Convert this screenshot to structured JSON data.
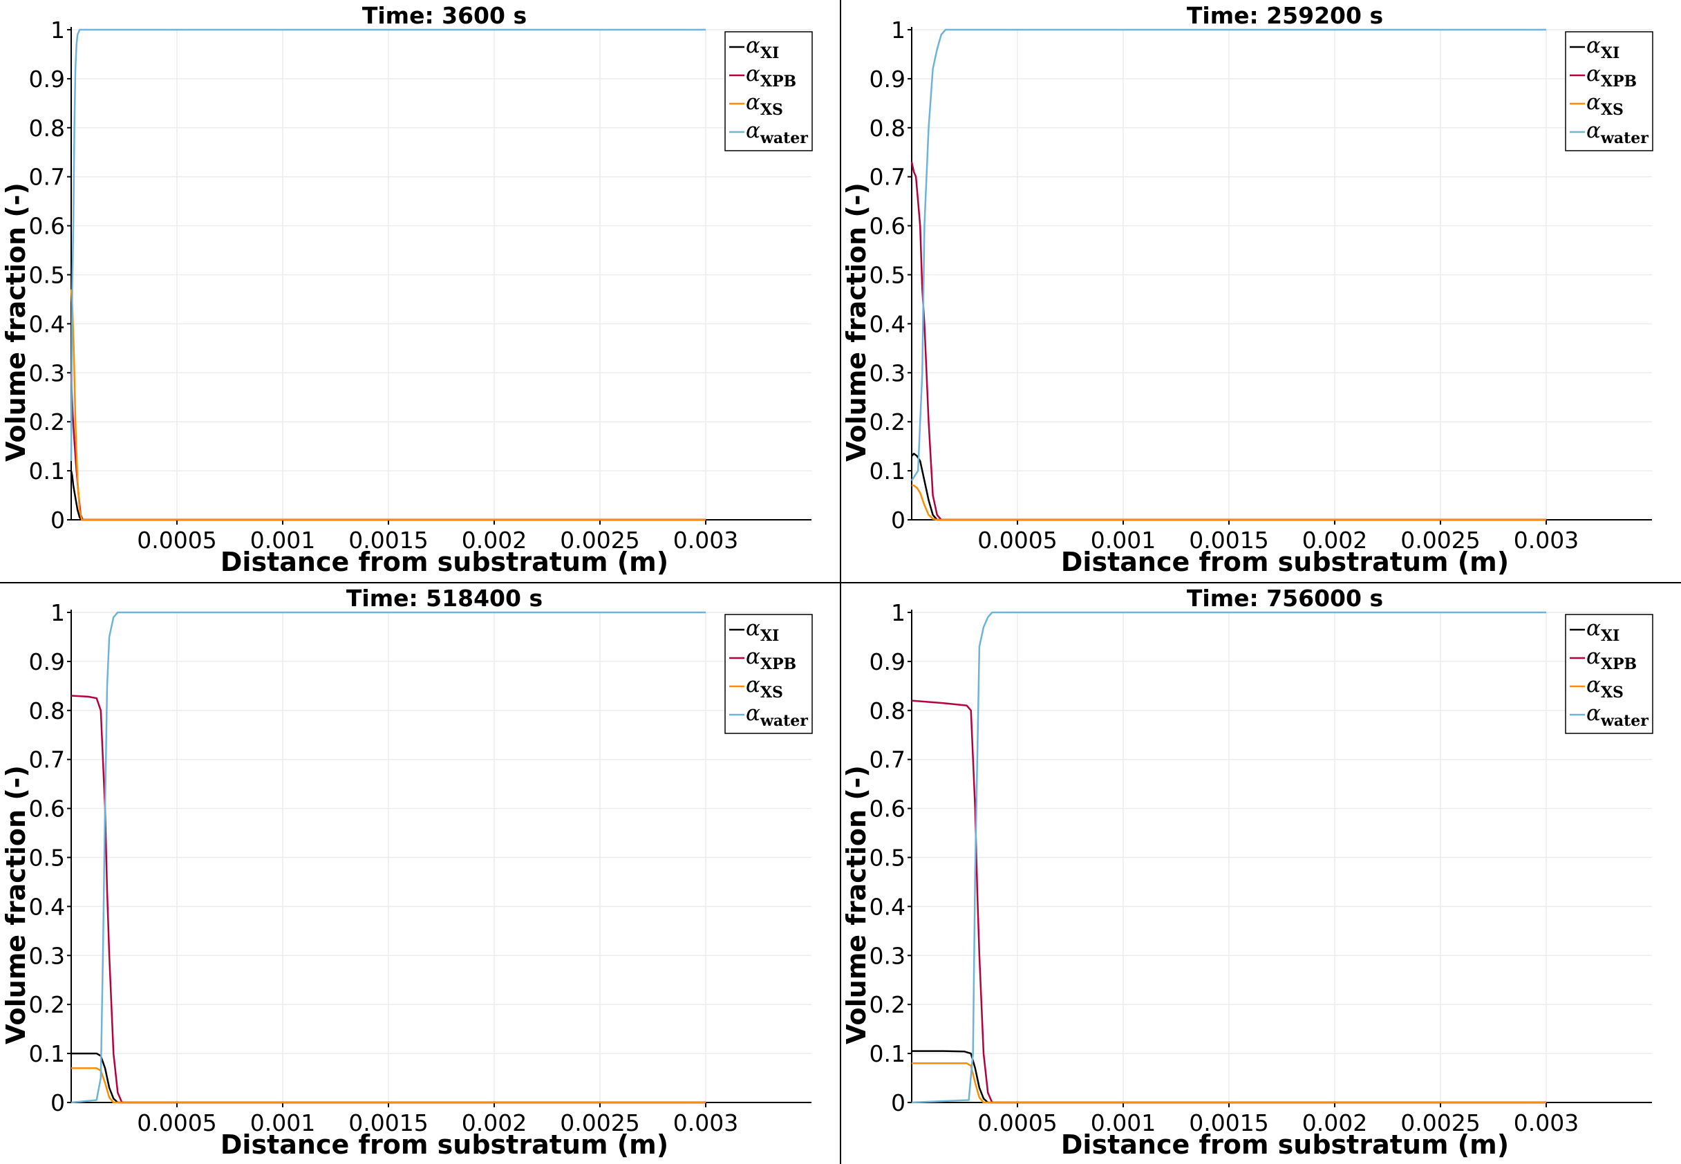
{
  "chart_data": [
    {
      "type": "line",
      "title": "Time: 3600 s",
      "xlabel": "Distance from substratum (m)",
      "ylabel": "Volume fraction (-)",
      "xlim": [
        0,
        0.0035
      ],
      "ylim": [
        0,
        1
      ],
      "xticks": [
        "0.0005",
        "0.001",
        "0.0015",
        "0.002",
        "0.0025",
        "0.003"
      ],
      "yticks": [
        "0",
        "0.1",
        "0.2",
        "0.3",
        "0.4",
        "0.5",
        "0.6",
        "0.7",
        "0.8",
        "0.9",
        "1"
      ],
      "grid": true,
      "legend_position": "top-right",
      "series": [
        {
          "name": "α_XI",
          "color": "#000000",
          "x": [
            0,
            5e-06,
            1e-05,
            2e-05,
            3e-05,
            4e-05,
            5e-05,
            0.003
          ],
          "y": [
            0.1,
            0.09,
            0.07,
            0.045,
            0.02,
            0.005,
            0,
            0
          ]
        },
        {
          "name": "α_XPB",
          "color": "#b5003c",
          "x": [
            0,
            4e-06,
            8e-06,
            1.5e-05,
            2.5e-05,
            3.5e-05,
            4.5e-05,
            5.5e-05,
            0.003
          ],
          "y": [
            0.3,
            0.25,
            0.21,
            0.16,
            0.1,
            0.05,
            0.01,
            0,
            0
          ]
        },
        {
          "name": "α_XS",
          "color": "#ff8c00",
          "x": [
            0,
            6e-06,
            1.2e-05,
            2e-05,
            3e-05,
            4e-05,
            5e-05,
            0.003
          ],
          "y": [
            0.47,
            0.43,
            0.35,
            0.2,
            0.08,
            0.02,
            0,
            0
          ]
        },
        {
          "name": "α_water",
          "color": "#6eb4d6",
          "x": [
            0,
            5e-06,
            1e-05,
            1.5e-05,
            2e-05,
            2.5e-05,
            3e-05,
            4e-05,
            5e-05,
            7e-05,
            0.003
          ],
          "y": [
            0.12,
            0.47,
            0.6,
            0.8,
            0.92,
            0.97,
            0.99,
            1,
            1,
            1,
            1
          ]
        }
      ]
    },
    {
      "type": "line",
      "title": "Time: 259200 s",
      "xlabel": "Distance from substratum (m)",
      "ylabel": "Volume fraction (-)",
      "xlim": [
        0,
        0.0035
      ],
      "ylim": [
        0,
        1
      ],
      "xticks": [
        "0.0005",
        "0.001",
        "0.0015",
        "0.002",
        "0.0025",
        "0.003"
      ],
      "yticks": [
        "0",
        "0.1",
        "0.2",
        "0.3",
        "0.4",
        "0.5",
        "0.6",
        "0.7",
        "0.8",
        "0.9",
        "1"
      ],
      "grid": true,
      "legend_position": "top-right",
      "series": [
        {
          "name": "α_XI",
          "color": "#000000",
          "x": [
            0,
            1e-05,
            2.5e-05,
            4e-05,
            6e-05,
            8e-05,
            0.0001,
            0.00012,
            0.003
          ],
          "y": [
            0.13,
            0.135,
            0.13,
            0.12,
            0.08,
            0.04,
            0.01,
            0,
            0
          ]
        },
        {
          "name": "α_XPB",
          "color": "#b5003c",
          "x": [
            0,
            1e-05,
            2e-05,
            3e-05,
            4e-05,
            5e-05,
            6e-05,
            8e-05,
            0.0001,
            0.00012,
            0.00014,
            0.003
          ],
          "y": [
            0.73,
            0.71,
            0.7,
            0.65,
            0.6,
            0.47,
            0.4,
            0.2,
            0.05,
            0.01,
            0,
            0
          ]
        },
        {
          "name": "α_XS",
          "color": "#ff8c00",
          "x": [
            0,
            1e-05,
            2.5e-05,
            4e-05,
            6e-05,
            8e-05,
            0.0001,
            0.00012,
            0.003
          ],
          "y": [
            0.07,
            0.07,
            0.065,
            0.055,
            0.03,
            0.01,
            0.002,
            0,
            0
          ]
        },
        {
          "name": "α_water",
          "color": "#6eb4d6",
          "x": [
            0,
            3e-05,
            5e-05,
            6e-05,
            8e-05,
            0.0001,
            0.00012,
            0.00014,
            0.00016,
            0.0002,
            0.003
          ],
          "y": [
            0.08,
            0.1,
            0.3,
            0.6,
            0.8,
            0.92,
            0.96,
            0.99,
            1,
            1,
            1
          ]
        }
      ]
    },
    {
      "type": "line",
      "title": "Time: 518400 s",
      "xlabel": "Distance from substratum (m)",
      "ylabel": "Volume fraction (-)",
      "xlim": [
        0,
        0.0035
      ],
      "ylim": [
        0,
        1
      ],
      "xticks": [
        "0.0005",
        "0.001",
        "0.0015",
        "0.002",
        "0.0025",
        "0.003"
      ],
      "yticks": [
        "0",
        "0.1",
        "0.2",
        "0.3",
        "0.4",
        "0.5",
        "0.6",
        "0.7",
        "0.8",
        "0.9",
        "1"
      ],
      "grid": true,
      "legend_position": "top-right",
      "series": [
        {
          "name": "α_XI",
          "color": "#000000",
          "x": [
            0,
            8e-05,
            0.00012,
            0.00014,
            0.00016,
            0.00018,
            0.0002,
            0.00022,
            0.003
          ],
          "y": [
            0.1,
            0.1,
            0.1,
            0.095,
            0.07,
            0.03,
            0.008,
            0,
            0
          ]
        },
        {
          "name": "α_XPB",
          "color": "#b5003c",
          "x": [
            0,
            8e-05,
            0.00012,
            0.00014,
            0.00016,
            0.00017,
            0.00018,
            0.0002,
            0.00022,
            0.00024,
            0.003
          ],
          "y": [
            0.83,
            0.828,
            0.825,
            0.8,
            0.6,
            0.43,
            0.3,
            0.1,
            0.02,
            0,
            0
          ]
        },
        {
          "name": "α_XS",
          "color": "#ff8c00",
          "x": [
            0,
            8e-05,
            0.00012,
            0.00014,
            0.00016,
            0.00018,
            0.0002,
            0.003
          ],
          "y": [
            0.07,
            0.07,
            0.07,
            0.065,
            0.04,
            0.01,
            0,
            0
          ]
        },
        {
          "name": "α_water",
          "color": "#6eb4d6",
          "x": [
            0,
            0.00012,
            0.00014,
            0.00015,
            0.00016,
            0.00017,
            0.00018,
            0.0002,
            0.00022,
            0.00025,
            0.003
          ],
          "y": [
            0,
            0.005,
            0.05,
            0.3,
            0.6,
            0.85,
            0.95,
            0.99,
            1,
            1,
            1
          ]
        }
      ]
    },
    {
      "type": "line",
      "title": "Time: 756000 s",
      "xlabel": "Distance from substratum (m)",
      "ylabel": "Volume fraction (-)",
      "xlim": [
        0,
        0.0035
      ],
      "ylim": [
        0,
        1
      ],
      "xticks": [
        "0.0005",
        "0.001",
        "0.0015",
        "0.002",
        "0.0025",
        "0.003"
      ],
      "yticks": [
        "0",
        "0.1",
        "0.2",
        "0.3",
        "0.4",
        "0.5",
        "0.6",
        "0.7",
        "0.8",
        "0.9",
        "1"
      ],
      "grid": true,
      "legend_position": "top-right",
      "series": [
        {
          "name": "α_XI",
          "color": "#000000",
          "x": [
            0,
            0.00015,
            0.00025,
            0.00028,
            0.0003,
            0.00032,
            0.00034,
            0.00036,
            0.003
          ],
          "y": [
            0.105,
            0.105,
            0.104,
            0.1,
            0.07,
            0.03,
            0.008,
            0,
            0
          ]
        },
        {
          "name": "α_XPB",
          "color": "#b5003c",
          "x": [
            0,
            0.00015,
            0.00026,
            0.00028,
            0.0003,
            0.00031,
            0.00032,
            0.00034,
            0.00036,
            0.00038,
            0.003
          ],
          "y": [
            0.82,
            0.815,
            0.81,
            0.8,
            0.6,
            0.43,
            0.3,
            0.1,
            0.02,
            0,
            0
          ]
        },
        {
          "name": "α_XS",
          "color": "#ff8c00",
          "x": [
            0,
            0.00015,
            0.00026,
            0.00028,
            0.0003,
            0.00032,
            0.00034,
            0.003
          ],
          "y": [
            0.08,
            0.08,
            0.08,
            0.075,
            0.04,
            0.01,
            0,
            0
          ]
        },
        {
          "name": "α_water",
          "color": "#6eb4d6",
          "x": [
            0,
            0.00027,
            0.00029,
            0.0003,
            0.00031,
            0.00032,
            0.00034,
            0.00036,
            0.00038,
            0.0004,
            0.003
          ],
          "y": [
            0,
            0.005,
            0.1,
            0.47,
            0.7,
            0.93,
            0.97,
            0.99,
            1,
            1,
            1
          ]
        }
      ]
    }
  ]
}
